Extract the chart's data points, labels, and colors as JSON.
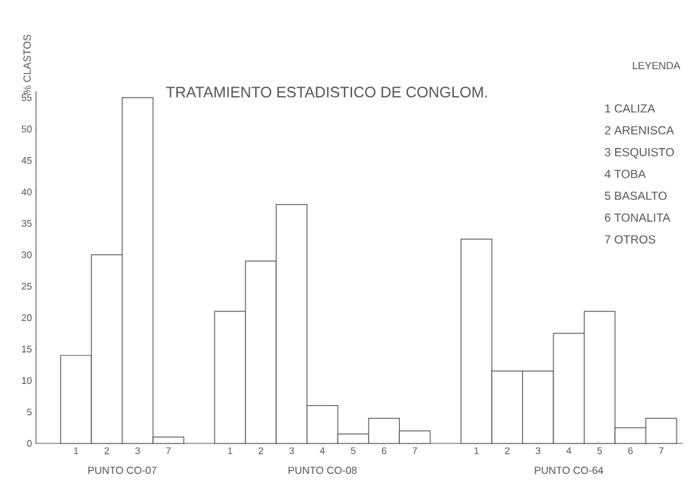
{
  "chart_data": {
    "type": "bar",
    "title": "TRATAMIENTO ESTADISTICO DE CONGLOM.",
    "ylabel": "% CLASTOS",
    "legend_title": "LEYENDA",
    "categories": [
      "1",
      "2",
      "3",
      "7",
      null,
      "1",
      "2",
      "3",
      "4",
      "5",
      "6",
      "7",
      null,
      "1",
      "2",
      "3",
      "4",
      "5",
      "6",
      "7"
    ],
    "values": [
      14,
      30,
      55,
      1,
      null,
      21,
      29,
      38,
      6,
      1.5,
      4,
      2,
      null,
      32.5,
      11.5,
      11.5,
      17.5,
      21,
      2.5,
      4
    ],
    "color": "#555555",
    "ylim": [
      0,
      56
    ],
    "yticks": [
      0,
      5,
      10,
      15,
      20,
      25,
      30,
      35,
      40,
      45,
      50,
      55
    ],
    "annotations": [
      "PUNTO CO-07",
      "PUNTO CO-08",
      "PUNTO CO-64",
      "1 CALIZA",
      "2 ARENISCA",
      "3 ESQUISTO",
      "4 TOBA",
      "5 BASALTO",
      "6 TONALITA",
      "7 OTROS"
    ]
  }
}
